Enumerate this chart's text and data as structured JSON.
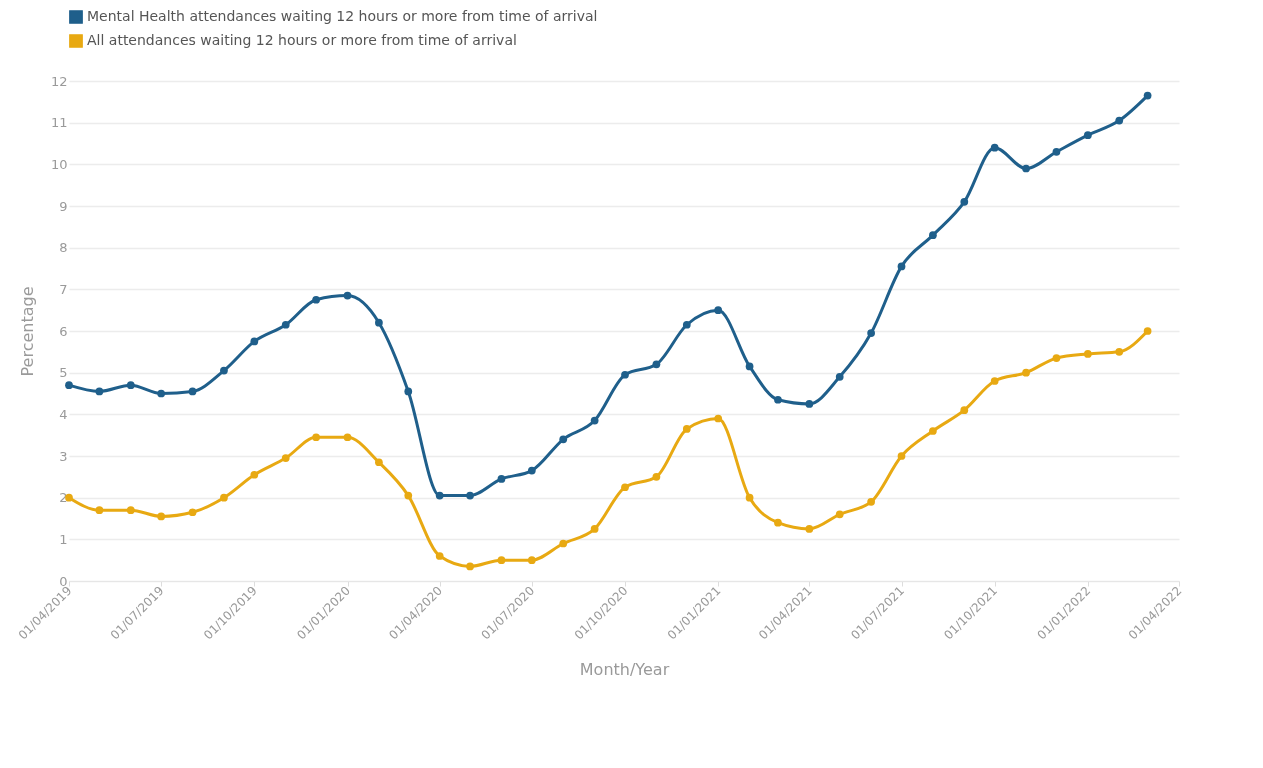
{
  "chart_data": {
    "type": "line",
    "xlabel": "Month/Year",
    "ylabel": "Percentage",
    "x": [
      "2019-04",
      "2019-05",
      "2019-06",
      "2019-07",
      "2019-08",
      "2019-09",
      "2019-10",
      "2019-11",
      "2019-12",
      "2020-01",
      "2020-02",
      "2020-03",
      "2020-04",
      "2020-05",
      "2020-06",
      "2020-07",
      "2020-08",
      "2020-09",
      "2020-10",
      "2020-11",
      "2020-12",
      "2021-01",
      "2021-02",
      "2021-03",
      "2021-04",
      "2021-05",
      "2021-06",
      "2021-07",
      "2021-08",
      "2021-09",
      "2021-10",
      "2021-11",
      "2021-12",
      "2022-01",
      "2022-02",
      "2022-03"
    ],
    "series": [
      {
        "name": "Mental Health attendances waiting 12 hours or more from time of arrival",
        "color": "#1f5f8b",
        "values": [
          4.7,
          4.55,
          4.7,
          4.5,
          4.55,
          5.05,
          5.75,
          6.15,
          6.75,
          6.85,
          6.2,
          4.55,
          2.05,
          2.05,
          2.45,
          2.65,
          3.4,
          3.85,
          4.95,
          5.2,
          6.15,
          6.5,
          5.15,
          4.35,
          4.25,
          4.9,
          5.95,
          7.55,
          8.3,
          9.1,
          10.4,
          9.9,
          10.3,
          10.7,
          11.05,
          11.65
        ]
      },
      {
        "name": "All attendances waiting 12 hours or more from time of arrival",
        "color": "#e8a912",
        "values": [
          2.0,
          1.7,
          1.7,
          1.55,
          1.65,
          2.0,
          2.55,
          2.95,
          3.45,
          3.45,
          2.85,
          2.05,
          0.6,
          0.35,
          0.5,
          0.5,
          0.9,
          1.25,
          2.25,
          2.5,
          3.65,
          3.9,
          2.0,
          1.4,
          1.25,
          1.6,
          1.9,
          3.0,
          3.6,
          4.1,
          4.8,
          5.0,
          5.35,
          5.45,
          5.5,
          6.0
        ]
      }
    ],
    "xlim": [
      "2019-04",
      "2022-04"
    ],
    "xticks": [
      {
        "value": "2019-04",
        "label": "01/04/2019"
      },
      {
        "value": "2019-07",
        "label": "01/07/2019"
      },
      {
        "value": "2019-10",
        "label": "01/10/2019"
      },
      {
        "value": "2020-01",
        "label": "01/01/2020"
      },
      {
        "value": "2020-04",
        "label": "01/04/2020"
      },
      {
        "value": "2020-07",
        "label": "01/07/2020"
      },
      {
        "value": "2020-10",
        "label": "01/10/2020"
      },
      {
        "value": "2021-01",
        "label": "01/01/2021"
      },
      {
        "value": "2021-04",
        "label": "01/04/2021"
      },
      {
        "value": "2021-07",
        "label": "01/07/2021"
      },
      {
        "value": "2021-10",
        "label": "01/10/2021"
      },
      {
        "value": "2022-01",
        "label": "01/01/2022"
      },
      {
        "value": "2022-04",
        "label": "01/04/2022"
      }
    ],
    "ylim": [
      0,
      12
    ],
    "yticks": [
      0,
      1,
      2,
      3,
      4,
      5,
      6,
      7,
      8,
      9,
      10,
      11,
      12
    ],
    "grid": "y",
    "legend": "top left",
    "marker": "circle",
    "line_style": "solid"
  }
}
